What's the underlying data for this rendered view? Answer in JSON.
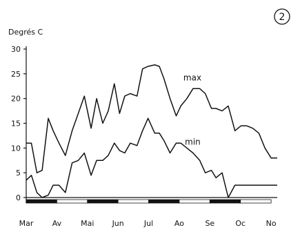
{
  "badge": {
    "text": "2"
  },
  "chart_data": {
    "type": "line",
    "ylabel": "Degrés C",
    "ylim": [
      0,
      30
    ],
    "yticks": [
      "0",
      "5",
      "10",
      "15",
      "20",
      "25",
      "30"
    ],
    "months": [
      "Mar",
      "Av",
      "Mai",
      "Jun",
      "Jul",
      "Ao",
      "Se",
      "Oc",
      "No"
    ],
    "series": [
      {
        "name": "max",
        "x": [
          0.0,
          0.17,
          0.35,
          0.52,
          0.72,
          0.88,
          1.07,
          1.28,
          1.5,
          1.7,
          1.9,
          2.12,
          2.3,
          2.5,
          2.68,
          2.88,
          3.05,
          3.22,
          3.4,
          3.62,
          3.8,
          3.98,
          4.2,
          4.35,
          4.5,
          4.7,
          4.9,
          5.05,
          5.25,
          5.45,
          5.67,
          5.85,
          6.05,
          6.2,
          6.4,
          6.6,
          6.82,
          7.02,
          7.2,
          7.4,
          7.6,
          7.8,
          8.0,
          8.2
        ],
        "values": [
          11,
          11,
          5,
          5.5,
          16,
          13.5,
          11,
          8.5,
          13.5,
          17,
          20.5,
          14,
          20,
          15,
          17.5,
          23,
          17,
          20.5,
          21,
          20.5,
          26,
          26.5,
          26.8,
          26.5,
          24,
          20,
          16.5,
          18.5,
          20,
          22,
          22,
          21,
          18,
          18,
          17.5,
          18.5,
          13.5,
          14.5,
          14.5,
          14,
          13,
          10,
          8,
          8
        ]
      },
      {
        "name": "min",
        "x": [
          0.0,
          0.17,
          0.35,
          0.52,
          0.72,
          0.88,
          1.07,
          1.28,
          1.5,
          1.7,
          1.9,
          2.12,
          2.3,
          2.5,
          2.68,
          2.88,
          3.05,
          3.22,
          3.4,
          3.62,
          3.8,
          3.98,
          4.2,
          4.35,
          4.5,
          4.7,
          4.9,
          5.05,
          5.25,
          5.45,
          5.67,
          5.85,
          6.05,
          6.2,
          6.4,
          6.6,
          6.82,
          7.02,
          7.2,
          7.4,
          7.6,
          7.8,
          8.0,
          8.2
        ],
        "values": [
          3.5,
          4.5,
          1,
          0,
          0.5,
          2.5,
          2.5,
          1,
          7,
          7.5,
          9,
          4.5,
          7.5,
          7.5,
          8.5,
          11,
          9.5,
          9,
          11,
          10.5,
          13.5,
          16,
          13,
          13,
          11.5,
          9,
          11,
          11,
          10,
          9,
          7.5,
          5,
          5.5,
          4,
          5,
          0,
          2.5,
          2.5,
          2.5,
          2.5,
          2.5,
          2.5,
          2.5,
          2.5
        ]
      }
    ],
    "bar_pattern": [
      "black",
      "white",
      "black",
      "white",
      "black",
      "white",
      "black",
      "white"
    ],
    "grid": false,
    "legend": "labels near lines"
  }
}
